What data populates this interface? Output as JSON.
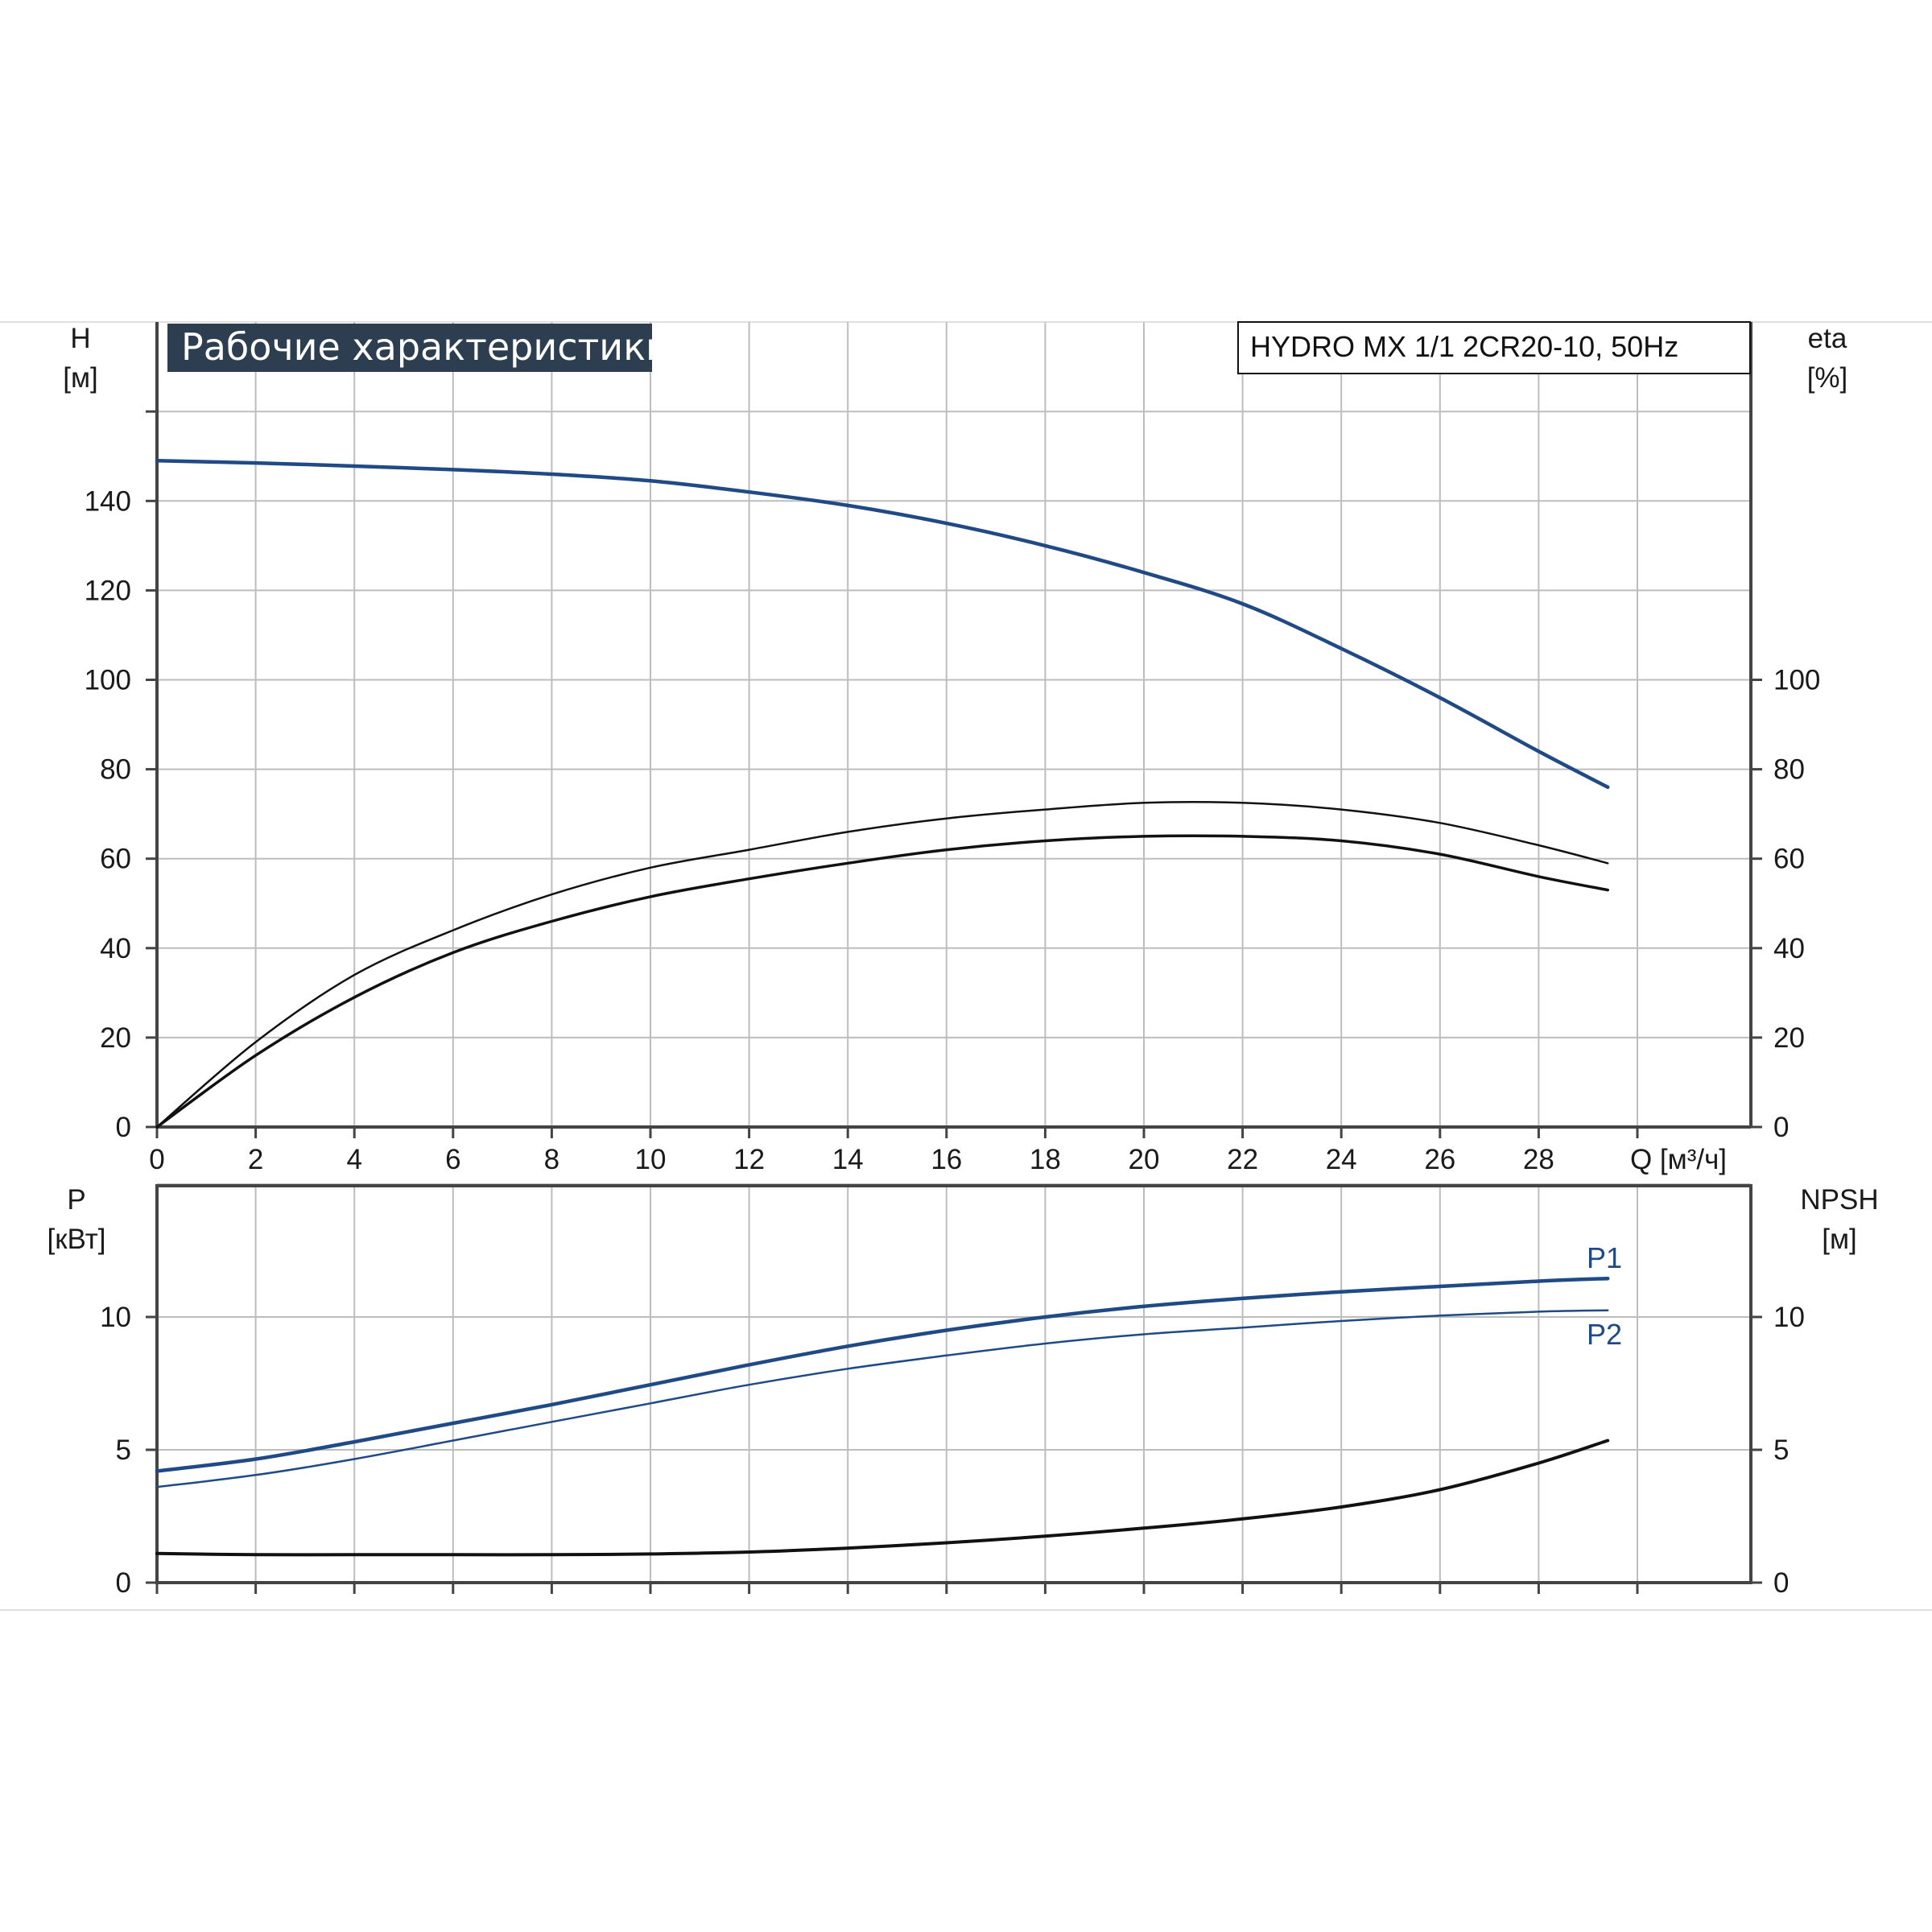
{
  "title": "Рабочие характеристики",
  "model": "HYDRO MX 1/1 2CR20-10, 50Hz",
  "colors": {
    "blue": "#1f4a85",
    "black": "#111111",
    "grid": "#bdbdbd",
    "title_bg": "#2d3e50"
  },
  "chart_data": [
    {
      "type": "line",
      "panel": "head-efficiency",
      "x_axis": {
        "label": "Q [м³/ч]",
        "ticks": [
          "0",
          "2",
          "4",
          "6",
          "8",
          "10",
          "12",
          "14",
          "16",
          "18",
          "20",
          "22",
          "24",
          "26",
          "28"
        ],
        "range": [
          0,
          32
        ]
      },
      "y_left": {
        "label_top": "H",
        "label_unit": "[м]",
        "ticks": [
          "0",
          "20",
          "40",
          "60",
          "80",
          "100",
          "120",
          "140"
        ],
        "range": [
          0,
          160
        ]
      },
      "y_right": {
        "label_top": "eta",
        "label_unit": "[%]",
        "ticks": [
          "0",
          "20",
          "40",
          "60",
          "80",
          "100"
        ],
        "range": [
          0,
          160
        ]
      },
      "grid": true,
      "series": [
        {
          "axis": "left",
          "color": "#1f4a85",
          "x": [
            0,
            2,
            4,
            6,
            8,
            10,
            12,
            14,
            16,
            18,
            20,
            22,
            24,
            26,
            28,
            29.4
          ],
          "y": [
            149,
            148.5,
            147.8,
            147,
            146,
            144.5,
            142,
            139,
            135,
            130,
            124,
            117,
            107,
            96,
            84,
            76
          ]
        },
        {
          "axis": "right",
          "color": "#111111",
          "x": [
            0,
            2,
            4,
            6,
            8,
            10,
            12,
            14,
            16,
            18,
            20,
            22,
            24,
            26,
            28,
            29.4
          ],
          "y": [
            0,
            19,
            34,
            44,
            52,
            58,
            62,
            66,
            69,
            71,
            72.5,
            72.5,
            71,
            68,
            63,
            59
          ]
        },
        {
          "axis": "right",
          "color": "#111111",
          "x": [
            0,
            2,
            4,
            6,
            8,
            10,
            12,
            14,
            16,
            18,
            20,
            22,
            24,
            26,
            28,
            29.4
          ],
          "y": [
            0,
            16,
            29,
            39,
            46,
            51.5,
            55.5,
            59,
            62,
            64,
            65,
            65,
            64,
            61,
            56,
            53
          ]
        }
      ]
    },
    {
      "type": "line",
      "panel": "power-npsh",
      "x_axis": {
        "range": [
          0,
          32
        ]
      },
      "y_left": {
        "label_top": "P",
        "label_unit": "[кВт]",
        "ticks": [
          "0",
          "5",
          "10"
        ],
        "range": [
          0,
          15.5
        ]
      },
      "y_right": {
        "label_top": "NPSH",
        "label_unit": "[м]",
        "ticks": [
          "0",
          "5",
          "10"
        ],
        "range": [
          0,
          15.5
        ]
      },
      "grid": true,
      "series": [
        {
          "name": "P1",
          "axis": "left",
          "color": "#1f4a85",
          "x": [
            0,
            2,
            4,
            6,
            8,
            10,
            12,
            14,
            16,
            18,
            20,
            22,
            24,
            26,
            28,
            29.4
          ],
          "y": [
            4.2,
            4.65,
            5.3,
            6,
            6.7,
            7.45,
            8.2,
            8.9,
            9.5,
            10,
            10.4,
            10.7,
            10.95,
            11.15,
            11.35,
            11.45
          ]
        },
        {
          "name": "P2",
          "axis": "left",
          "color": "#1f4a85",
          "x": [
            0,
            2,
            4,
            6,
            8,
            10,
            12,
            14,
            16,
            18,
            20,
            22,
            24,
            26,
            28,
            29.4
          ],
          "y": [
            3.6,
            4.05,
            4.65,
            5.35,
            6.05,
            6.75,
            7.45,
            8.05,
            8.55,
            9,
            9.35,
            9.6,
            9.85,
            10.05,
            10.2,
            10.25
          ]
        },
        {
          "axis": "right",
          "color": "#111111",
          "x": [
            0,
            2,
            4,
            6,
            8,
            10,
            12,
            14,
            16,
            18,
            20,
            22,
            24,
            26,
            28,
            29.4
          ],
          "y": [
            1.1,
            1.05,
            1.05,
            1.05,
            1.05,
            1.08,
            1.15,
            1.3,
            1.5,
            1.75,
            2.05,
            2.4,
            2.85,
            3.5,
            4.5,
            5.35
          ]
        }
      ]
    }
  ]
}
